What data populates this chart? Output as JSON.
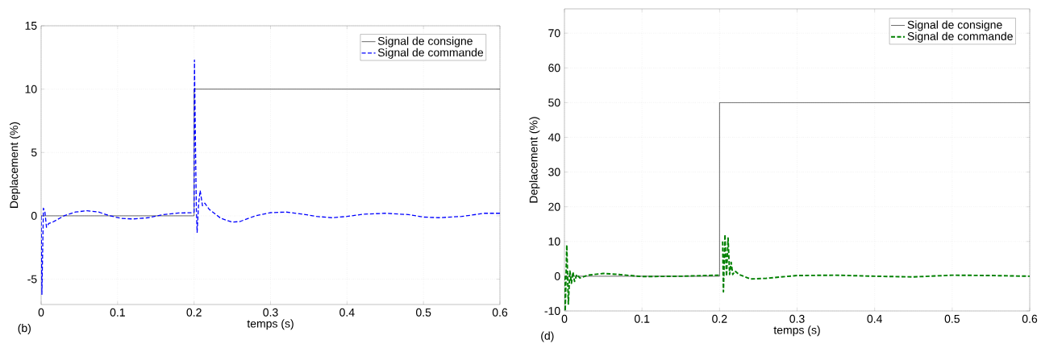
{
  "chart_data": [
    {
      "type": "line",
      "xlabel": "temps (s)",
      "ylabel": "Deplacement (%)",
      "annotations": [
        "(b)"
      ],
      "xlim": [
        0,
        0.6
      ],
      "ylim": [
        -7,
        15
      ],
      "xticks": [
        0,
        0.1,
        0.2,
        0.3,
        0.4,
        0.5,
        0.6
      ],
      "yticks": [
        -5,
        0,
        5,
        10,
        15
      ],
      "grid": true,
      "legend": "top right",
      "series": [
        {
          "name": "Signal de consigne",
          "color": "#000000",
          "line_style": "solid",
          "x": [
            0,
            0.2,
            0.2,
            0.6
          ],
          "values": [
            0,
            0,
            10,
            10
          ]
        },
        {
          "name": "Signal de commande",
          "color": "#0000ff",
          "line_style": "dashed",
          "x": [
            0,
            0.001,
            0.003,
            0.005,
            0.007,
            0.01,
            0.015,
            0.03,
            0.045,
            0.06,
            0.075,
            0.09,
            0.105,
            0.12,
            0.14,
            0.16,
            0.18,
            0.199,
            0.2,
            0.2005,
            0.202,
            0.203,
            0.204,
            0.206,
            0.208,
            0.211,
            0.214,
            0.22,
            0.235,
            0.25,
            0.26,
            0.28,
            0.3,
            0.32,
            0.34,
            0.36,
            0.38,
            0.4,
            0.42,
            0.45,
            0.48,
            0.5,
            0.52,
            0.55,
            0.58,
            0.6
          ],
          "values": [
            0,
            -6.2,
            0.6,
            0.3,
            -0.9,
            -0.6,
            -0.5,
            0,
            0.3,
            0.4,
            0.3,
            0,
            -0.2,
            -0.25,
            -0.15,
            0.1,
            0.22,
            0.25,
            0.3,
            12.3,
            5,
            0.5,
            -1.3,
            1,
            2.0,
            0.8,
            1.0,
            0.5,
            -0.2,
            -0.5,
            -0.45,
            0,
            0.25,
            0.3,
            0.15,
            -0.05,
            -0.15,
            -0.05,
            0.12,
            0.2,
            0.1,
            -0.1,
            -0.15,
            -0.05,
            0.2,
            0.2
          ]
        }
      ]
    },
    {
      "type": "line",
      "xlabel": "temps (s)",
      "ylabel": "Deplacement (%)",
      "annotations": [
        "(d)"
      ],
      "xlim": [
        0,
        0.6
      ],
      "ylim": [
        -10,
        77
      ],
      "xticks": [
        0,
        0.1,
        0.2,
        0.3,
        0.4,
        0.5,
        0.6
      ],
      "yticks": [
        -10,
        0,
        10,
        20,
        30,
        40,
        50,
        60,
        70
      ],
      "grid": true,
      "legend": "top right",
      "series": [
        {
          "name": "Signal de consigne",
          "color": "#000000",
          "line_style": "solid",
          "x": [
            0,
            0.2,
            0.2,
            0.6
          ],
          "values": [
            0,
            0,
            50,
            50
          ]
        },
        {
          "name": "Signal de commande",
          "color": "#008000",
          "line_style": "dashed",
          "x": [
            0,
            0.001,
            0.003,
            0.005,
            0.007,
            0.009,
            0.011,
            0.013,
            0.016,
            0.02,
            0.03,
            0.05,
            0.07,
            0.1,
            0.15,
            0.199,
            0.2,
            0.201,
            0.2025,
            0.204,
            0.205,
            0.207,
            0.209,
            0.211,
            0.213,
            0.215,
            0.217,
            0.22,
            0.225,
            0.24,
            0.26,
            0.3,
            0.35,
            0.4,
            0.45,
            0.5,
            0.55,
            0.6
          ],
          "values": [
            0,
            -10,
            9,
            -8,
            1.5,
            -2,
            1.2,
            -1.5,
            0.5,
            -0.5,
            0.3,
            0.8,
            0.5,
            -0.1,
            0,
            0.3,
            0.3,
            null,
            null,
            10,
            -4.5,
            12,
            0,
            11,
            0.5,
            4,
            0.5,
            1.5,
            0.5,
            -0.8,
            -0.6,
            0.2,
            0.3,
            0,
            -0.2,
            0.3,
            0.2,
            0
          ]
        }
      ]
    }
  ]
}
